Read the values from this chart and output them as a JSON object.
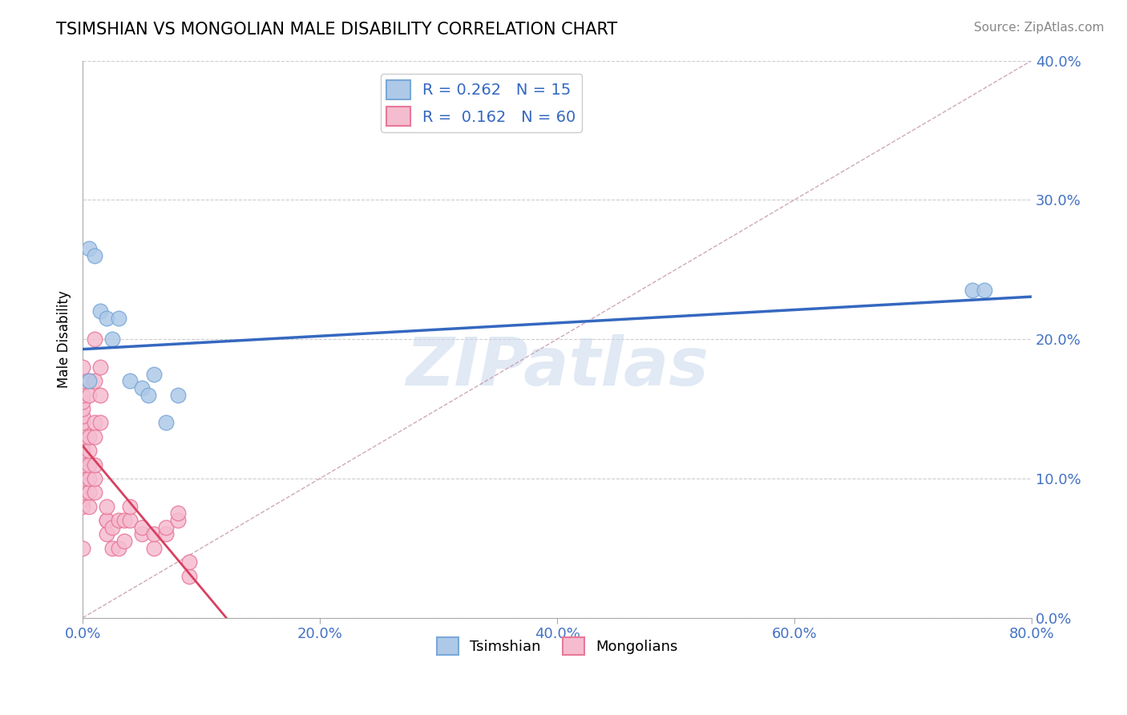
{
  "title": "TSIMSHIAN VS MONGOLIAN MALE DISABILITY CORRELATION CHART",
  "source": "Source: ZipAtlas.com",
  "ylabel": "Male Disability",
  "x_tick_labels": [
    "0.0%",
    "20.0%",
    "40.0%",
    "60.0%",
    "80.0%"
  ],
  "y_tick_labels": [
    "0.0%",
    "10.0%",
    "20.0%",
    "30.0%",
    "40.0%"
  ],
  "xlim": [
    0.0,
    0.8
  ],
  "ylim": [
    0.0,
    0.4
  ],
  "tsimshian_x": [
    0.005,
    0.01,
    0.015,
    0.02,
    0.025,
    0.03,
    0.04,
    0.05,
    0.055,
    0.06,
    0.08,
    0.75,
    0.76,
    0.005,
    0.07
  ],
  "tsimshian_y": [
    0.265,
    0.26,
    0.22,
    0.215,
    0.2,
    0.215,
    0.17,
    0.165,
    0.16,
    0.175,
    0.16,
    0.235,
    0.235,
    0.17,
    0.14
  ],
  "mongolian_x": [
    0.0,
    0.0,
    0.0,
    0.0,
    0.0,
    0.0,
    0.0,
    0.0,
    0.0,
    0.0,
    0.0,
    0.0,
    0.0,
    0.0,
    0.0,
    0.0,
    0.0,
    0.0,
    0.0,
    0.0,
    0.005,
    0.005,
    0.005,
    0.005,
    0.005,
    0.005,
    0.005,
    0.005,
    0.01,
    0.01,
    0.01,
    0.01,
    0.01,
    0.01,
    0.01,
    0.015,
    0.015,
    0.015,
    0.02,
    0.02,
    0.02,
    0.02,
    0.025,
    0.025,
    0.03,
    0.03,
    0.035,
    0.035,
    0.04,
    0.04,
    0.05,
    0.05,
    0.06,
    0.06,
    0.07,
    0.07,
    0.08,
    0.08,
    0.09,
    0.09
  ],
  "mongolian_y": [
    0.08,
    0.085,
    0.09,
    0.095,
    0.1,
    0.105,
    0.11,
    0.115,
    0.12,
    0.125,
    0.13,
    0.135,
    0.14,
    0.145,
    0.15,
    0.155,
    0.16,
    0.17,
    0.18,
    0.05,
    0.08,
    0.09,
    0.1,
    0.11,
    0.12,
    0.13,
    0.16,
    0.17,
    0.09,
    0.1,
    0.11,
    0.13,
    0.14,
    0.17,
    0.2,
    0.14,
    0.16,
    0.18,
    0.06,
    0.07,
    0.07,
    0.08,
    0.05,
    0.065,
    0.05,
    0.07,
    0.055,
    0.07,
    0.07,
    0.08,
    0.06,
    0.065,
    0.05,
    0.06,
    0.06,
    0.065,
    0.07,
    0.075,
    0.03,
    0.04
  ],
  "tsimshian_color": "#aec9e8",
  "mongolian_color": "#f5bcd0",
  "tsimshian_edge": "#7aa8d8",
  "mongolian_edge": "#e87898",
  "regression_tsimshian_color": "#3568c0",
  "regression_mongolian_color": "#d84060",
  "diagonal_color": "#c8a0b0",
  "R_tsimshian": 0.262,
  "N_tsimshian": 15,
  "R_mongolian": 0.162,
  "N_mongolian": 60,
  "watermark": "ZIPatlas",
  "background_color": "#ffffff",
  "grid_color": "#c8c8c8"
}
